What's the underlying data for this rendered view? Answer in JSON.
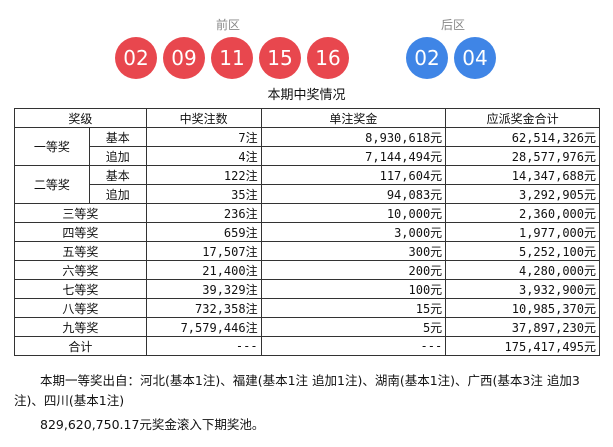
{
  "draw": {
    "front_label": "前区",
    "back_label": "后区",
    "front_numbers": [
      "02",
      "09",
      "11",
      "15",
      "16"
    ],
    "back_numbers": [
      "02",
      "04"
    ]
  },
  "caption": "本期中奖情况",
  "table": {
    "headers": [
      "奖级",
      "中奖注数",
      "单注奖金",
      "应派奖金合计"
    ],
    "first_prize": {
      "label": "一等奖",
      "rows": [
        {
          "sub": "基本",
          "count": "7注",
          "unit": "8,930,618元",
          "total": "62,514,326元"
        },
        {
          "sub": "追加",
          "count": "4注",
          "unit": "7,144,494元",
          "total": "28,577,976元"
        }
      ]
    },
    "second_prize": {
      "label": "二等奖",
      "rows": [
        {
          "sub": "基本",
          "count": "122注",
          "unit": "117,604元",
          "total": "14,347,688元"
        },
        {
          "sub": "追加",
          "count": "35注",
          "unit": "94,083元",
          "total": "3,292,905元"
        }
      ]
    },
    "rows": [
      {
        "label": "三等奖",
        "count": "236注",
        "unit": "10,000元",
        "total": "2,360,000元"
      },
      {
        "label": "四等奖",
        "count": "659注",
        "unit": "3,000元",
        "total": "1,977,000元"
      },
      {
        "label": "五等奖",
        "count": "17,507注",
        "unit": "300元",
        "total": "5,252,100元"
      },
      {
        "label": "六等奖",
        "count": "21,400注",
        "unit": "200元",
        "total": "4,280,000元"
      },
      {
        "label": "七等奖",
        "count": "39,329注",
        "unit": "100元",
        "total": "3,932,900元"
      },
      {
        "label": "八等奖",
        "count": "732,358注",
        "unit": "15元",
        "total": "10,985,370元"
      },
      {
        "label": "九等奖",
        "count": "7,579,446注",
        "unit": "5元",
        "total": "37,897,230元"
      }
    ],
    "total_row": {
      "label": "合计",
      "count": "---",
      "unit": "---",
      "total": "175,417,495元"
    }
  },
  "notes": {
    "first_prize_origin": "本期一等奖出自：河北(基本1注)、福建(基本1注 追加1注)、湖南(基本1注)、广西(基本3注 追加3注)、四川(基本1注)",
    "rollover": "829,620,750.17元奖金滚入下期奖池。"
  }
}
